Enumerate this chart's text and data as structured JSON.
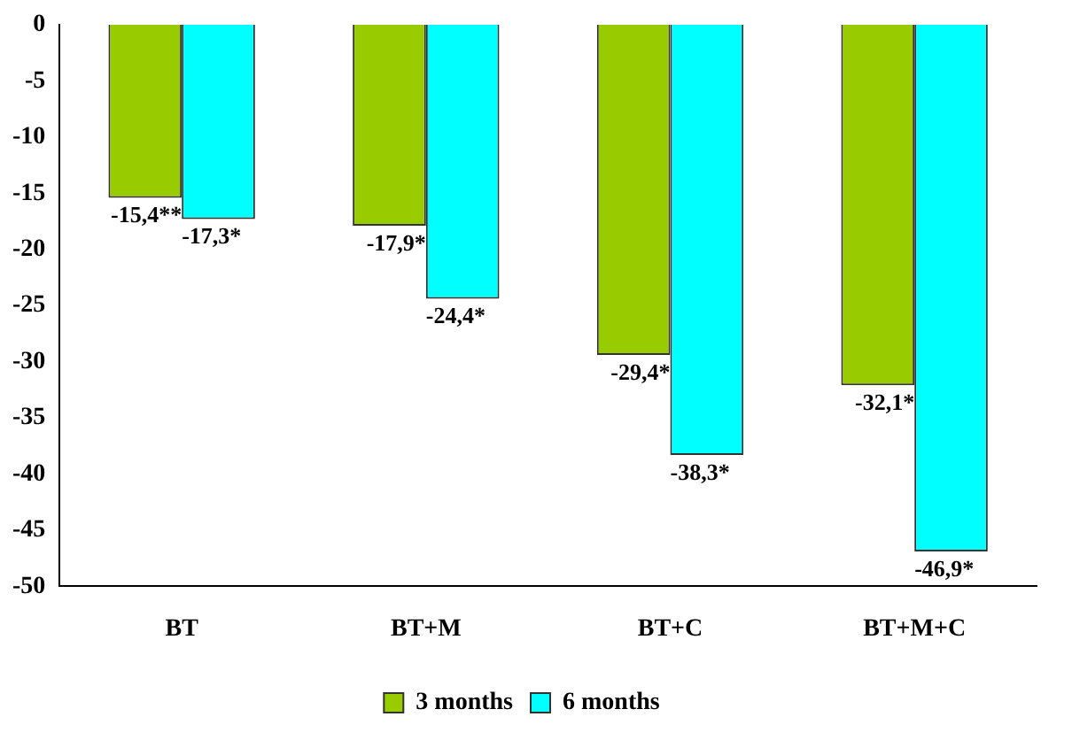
{
  "chart_data": {
    "type": "bar",
    "categories": [
      "BT",
      "BT+M",
      "BT+C",
      "BT+M+C"
    ],
    "series": [
      {
        "name": "3 months",
        "color": "#99cc00",
        "values": [
          -15.4,
          -17.9,
          -29.4,
          -32.1
        ],
        "value_labels": [
          "-15,4**",
          "-17,9*",
          "-29,4*",
          "-32,1*"
        ]
      },
      {
        "name": "6 months",
        "color": "#00ffff",
        "values": [
          -17.3,
          -24.4,
          -38.3,
          -46.9
        ],
        "value_labels": [
          "-17,3*",
          "-24,4*",
          "-38,3*",
          "-46,9*"
        ]
      }
    ],
    "ylim": [
      -50,
      0
    ],
    "yticks": [
      0,
      -5,
      -10,
      -15,
      -20,
      -25,
      -30,
      -35,
      -40,
      -45,
      -50
    ],
    "grid": false,
    "legend": "bottom"
  }
}
